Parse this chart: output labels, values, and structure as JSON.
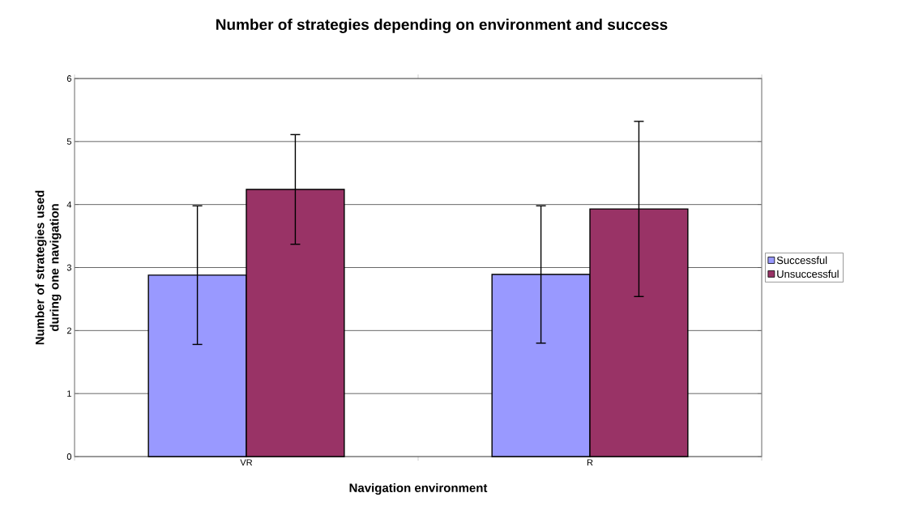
{
  "chart_data": {
    "type": "bar",
    "title": "Number of  strategies depending on environment and success",
    "xlabel": "Navigation environment",
    "ylabel": "Number of strategies used during one navigation",
    "categories": [
      "VR",
      "R"
    ],
    "series": [
      {
        "name": "Successful",
        "color": "#9999ff",
        "values": [
          2.88,
          2.89
        ],
        "errors": [
          1.1,
          1.09
        ]
      },
      {
        "name": "Unsuccessful",
        "color": "#993366",
        "values": [
          4.24,
          3.93
        ],
        "errors": [
          0.87,
          1.39
        ]
      }
    ],
    "ylim": [
      0,
      6
    ],
    "yticks": [
      0,
      1,
      2,
      3,
      4,
      5,
      6
    ],
    "grid": "y",
    "legend": "right"
  }
}
